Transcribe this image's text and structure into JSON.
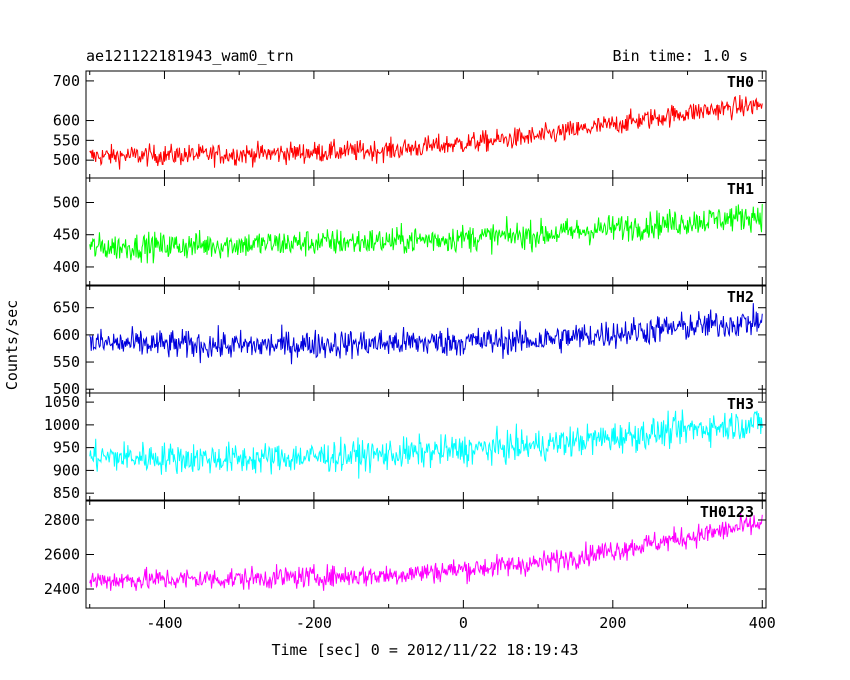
{
  "chart_data": {
    "type": "line",
    "title": "ae121122181943_wam0_trn",
    "bin_time_label": "Bin time: 1.0 s",
    "xlabel": "Time [sec] 0 = 2012/11/22 18:19:43",
    "ylabel": "Counts/sec",
    "xlim": [
      -505,
      405
    ],
    "x_ticks": [
      -400,
      -200,
      0,
      200,
      400
    ],
    "grid": false,
    "panels": [
      {
        "name": "TH0",
        "color": "#ff0000",
        "ylim": [
          455,
          725
        ],
        "y_ticks": [
          500,
          550,
          600,
          700
        ],
        "y_tick_labels": [
          "500",
          "550",
          "600",
          "700"
        ],
        "trend": [
          [
            -500,
            510
          ],
          [
            -300,
            515
          ],
          [
            -100,
            525
          ],
          [
            100,
            560
          ],
          [
            300,
            620
          ],
          [
            400,
            640
          ]
        ],
        "noise_amplitude": 35
      },
      {
        "name": "TH1",
        "color": "#00ff00",
        "ylim": [
          372,
          538
        ],
        "y_ticks": [
          400,
          450,
          500
        ],
        "y_tick_labels": [
          "400",
          "450",
          "500"
        ],
        "trend": [
          [
            -500,
            430
          ],
          [
            -300,
            435
          ],
          [
            -100,
            440
          ],
          [
            100,
            450
          ],
          [
            300,
            470
          ],
          [
            400,
            480
          ]
        ],
        "noise_amplitude": 28
      },
      {
        "name": "TH2",
        "color": "#0000dd",
        "ylim": [
          493,
          690
        ],
        "y_ticks": [
          500,
          550,
          600,
          650
        ],
        "y_tick_labels": [
          "500",
          "550",
          "600",
          "650"
        ],
        "trend": [
          [
            -500,
            585
          ],
          [
            -300,
            580
          ],
          [
            -100,
            585
          ],
          [
            100,
            590
          ],
          [
            300,
            615
          ],
          [
            400,
            625
          ]
        ],
        "noise_amplitude": 35
      },
      {
        "name": "TH3",
        "color": "#00ffff",
        "ylim": [
          835,
          1070
        ],
        "y_ticks": [
          850,
          900,
          950,
          1000,
          1050
        ],
        "y_tick_labels": [
          "850",
          "900",
          "950",
          "1000",
          "1050"
        ],
        "trend": [
          [
            -500,
            930
          ],
          [
            -300,
            925
          ],
          [
            -100,
            935
          ],
          [
            100,
            955
          ],
          [
            300,
            990
          ],
          [
            400,
            1005
          ]
        ],
        "noise_amplitude": 45
      },
      {
        "name": "TH0123",
        "color": "#ff00ff",
        "ylim": [
          2290,
          2910
        ],
        "y_ticks": [
          2400,
          2600,
          2800
        ],
        "y_tick_labels": [
          "2400",
          "2600",
          "2800"
        ],
        "trend": [
          [
            -500,
            2450
          ],
          [
            -300,
            2460
          ],
          [
            -100,
            2480
          ],
          [
            100,
            2550
          ],
          [
            300,
            2700
          ],
          [
            400,
            2780
          ]
        ],
        "noise_amplitude": 85
      }
    ]
  }
}
